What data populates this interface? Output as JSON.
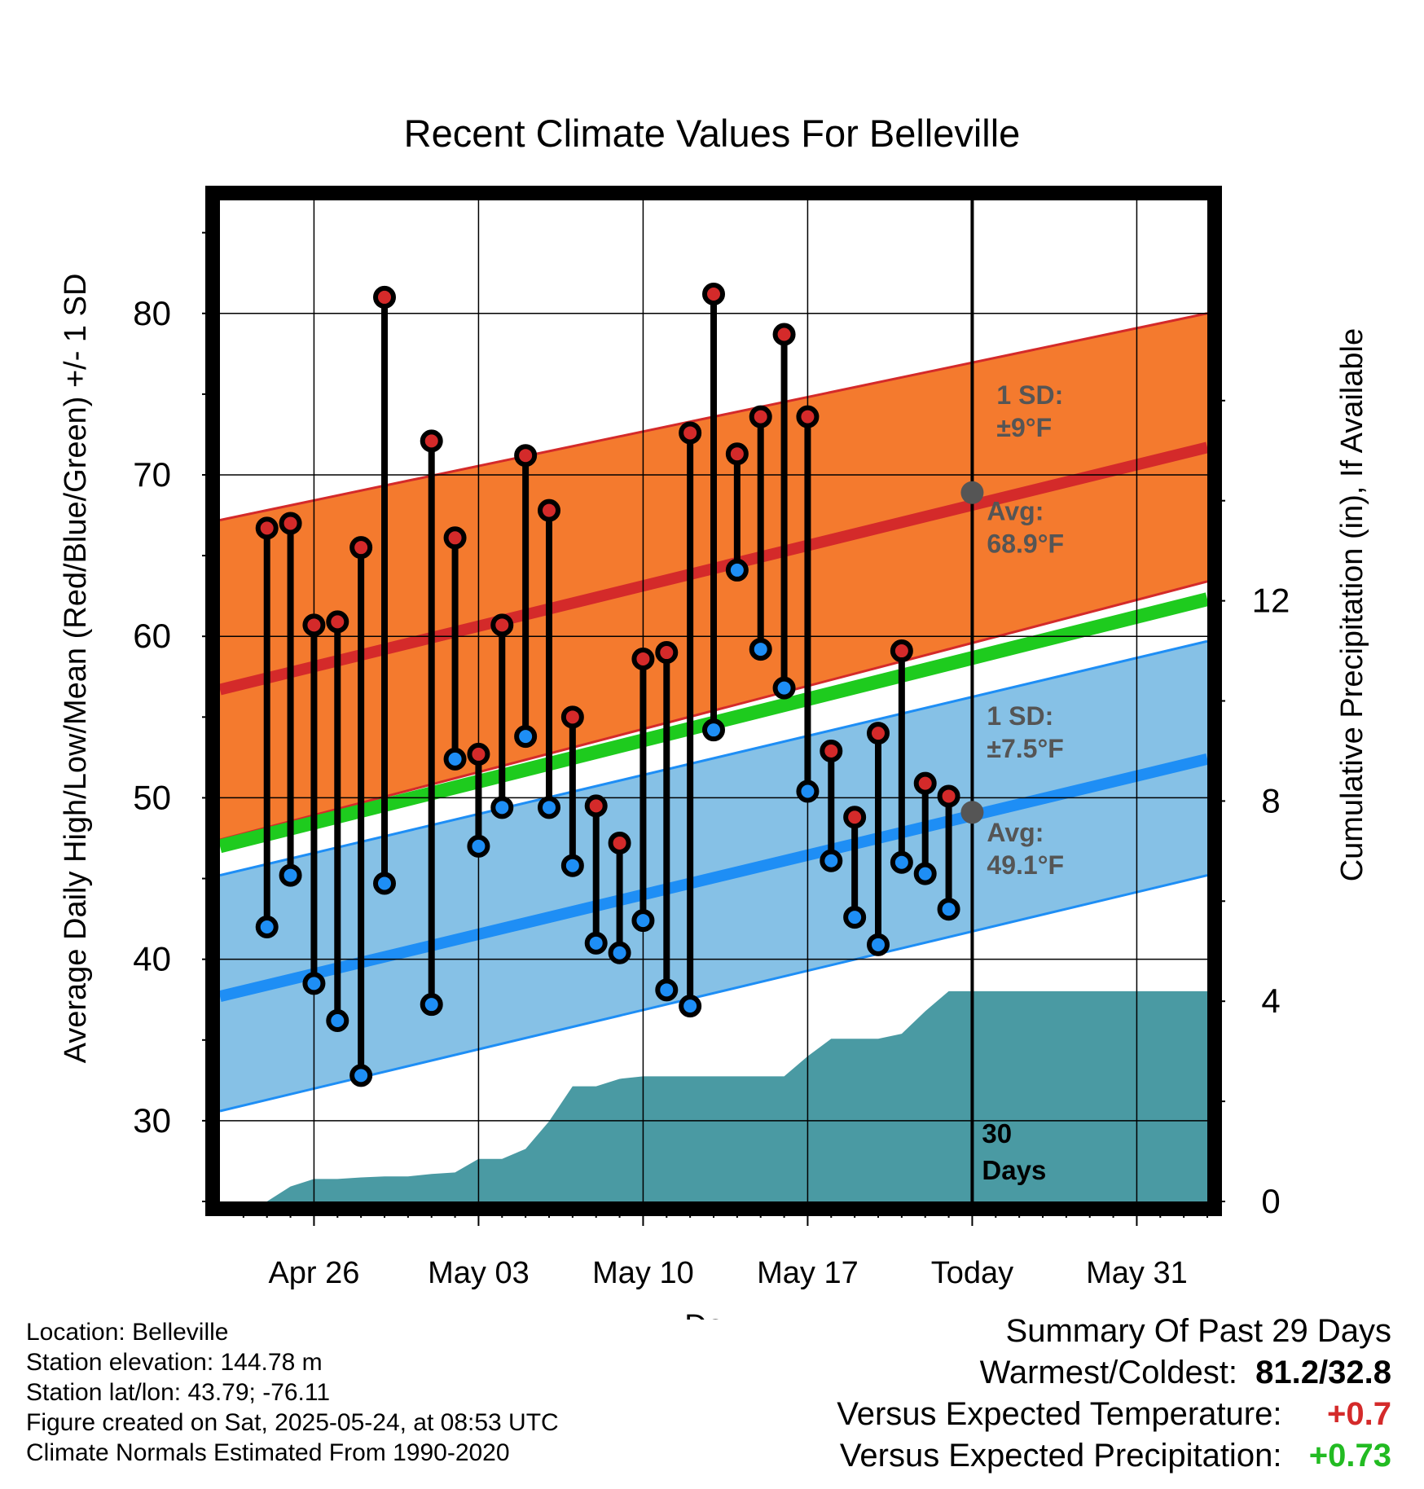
{
  "chart_data": {
    "type": "line",
    "title": "Recent Climate Values For Belleville",
    "xlabel": "Day",
    "ylabel_left": "Average Daily High/Low/Mean (Red/Blue/Green) +/- 1 SD",
    "ylabel_right": "Cumulative Precipitation (in), If Available",
    "x_tick_labels": [
      "Apr 26",
      "May 03",
      "May 10",
      "May 17",
      "Today",
      "May 31"
    ],
    "x_tick_days": [
      "2025-04-26",
      "2025-05-03",
      "2025-05-10",
      "2025-05-17",
      "2025-05-24",
      "2025-05-31"
    ],
    "x_range": [
      "2025-04-22",
      "2025-06-03"
    ],
    "ylim_left": [
      25,
      87
    ],
    "y_ticks_left": [
      30,
      40,
      50,
      60,
      70,
      80
    ],
    "ylim_right": [
      0,
      20
    ],
    "y_ticks_right": [
      0,
      4,
      8,
      12
    ],
    "grid": true,
    "today": "2025-05-24",
    "days_label": "30 Days",
    "observed": {
      "dates": [
        "2025-04-24",
        "2025-04-25",
        "2025-04-26",
        "2025-04-27",
        "2025-04-28",
        "2025-04-29",
        "2025-05-01",
        "2025-05-02",
        "2025-05-03",
        "2025-05-04",
        "2025-05-05",
        "2025-05-06",
        "2025-05-07",
        "2025-05-08",
        "2025-05-09",
        "2025-05-10",
        "2025-05-11",
        "2025-05-12",
        "2025-05-13",
        "2025-05-14",
        "2025-05-15",
        "2025-05-16",
        "2025-05-17",
        "2025-05-18",
        "2025-05-19",
        "2025-05-20",
        "2025-05-21",
        "2025-05-22",
        "2025-05-23"
      ],
      "high": [
        66.7,
        67.0,
        60.7,
        60.9,
        65.5,
        81.0,
        72.1,
        66.1,
        52.7,
        60.7,
        71.2,
        67.8,
        55.0,
        49.5,
        47.2,
        58.6,
        59.0,
        72.6,
        81.2,
        71.3,
        73.6,
        78.7,
        73.6,
        52.9,
        48.8,
        54.0,
        59.1,
        50.9,
        50.1
      ],
      "low": [
        42.0,
        45.2,
        38.5,
        36.2,
        32.8,
        44.7,
        37.2,
        52.4,
        47.0,
        49.4,
        53.8,
        49.4,
        45.8,
        41.0,
        40.4,
        42.4,
        38.1,
        37.1,
        54.2,
        64.1,
        59.2,
        56.8,
        50.4,
        46.1,
        42.6,
        40.9,
        46.0,
        45.3,
        43.1
      ]
    },
    "normals": {
      "dates": [
        "2025-04-22",
        "2025-06-03"
      ],
      "high_avg": [
        56.7,
        71.7
      ],
      "high_sd_upper": [
        67.2,
        80.0
      ],
      "high_sd_lower": [
        47.4,
        63.4
      ],
      "mean_avg": [
        47.0,
        62.3
      ],
      "low_avg": [
        37.7,
        52.4
      ],
      "low_sd_upper": [
        45.2,
        59.7
      ],
      "low_sd_lower": [
        30.6,
        45.2
      ]
    },
    "today_markers": {
      "high_avg": 68.9,
      "low_avg": 49.1
    },
    "annotations": {
      "high_sd": "1 SD: ±9°F",
      "high_avg": "Avg: 68.9°F",
      "low_sd": "1 SD: ±7.5°F",
      "low_avg": "Avg: 49.1°F"
    },
    "precip": {
      "dates": [
        "2025-04-22",
        "2025-04-24",
        "2025-04-25",
        "2025-04-26",
        "2025-04-27",
        "2025-04-28",
        "2025-04-29",
        "2025-04-30",
        "2025-05-01",
        "2025-05-02",
        "2025-05-03",
        "2025-05-04",
        "2025-05-05",
        "2025-05-06",
        "2025-05-07",
        "2025-05-08",
        "2025-05-09",
        "2025-05-10",
        "2025-05-11",
        "2025-05-12",
        "2025-05-13",
        "2025-05-14",
        "2025-05-15",
        "2025-05-16",
        "2025-05-17",
        "2025-05-18",
        "2025-05-19",
        "2025-05-20",
        "2025-05-21",
        "2025-05-22",
        "2025-05-23",
        "2025-05-24",
        "2025-06-03"
      ],
      "values": [
        0,
        0,
        0.3,
        0.45,
        0.45,
        0.48,
        0.5,
        0.5,
        0.55,
        0.58,
        0.85,
        0.85,
        1.05,
        1.6,
        2.3,
        2.3,
        2.45,
        2.5,
        2.5,
        2.5,
        2.5,
        2.5,
        2.5,
        2.5,
        2.9,
        3.25,
        3.25,
        3.25,
        3.35,
        3.8,
        4.2,
        4.2,
        4.2
      ]
    },
    "colors": {
      "high_band": "#f47a2e",
      "high_line": "#d42a2a",
      "mean_line": "#1ecb1e",
      "low_band": "#86c1e6",
      "low_line": "#1e8ef5",
      "precip": "#4a9aa3",
      "high_point": "#d42a2a",
      "low_point": "#1e8ef5",
      "annotation_text": "#555555",
      "temp_anomaly": "#d42a2a",
      "precip_anomaly": "#22bb22"
    }
  },
  "info": {
    "location": "Location: Belleville",
    "elevation": "Station elevation: 144.78 m",
    "latlon": "Station lat/lon: 43.79; -76.11",
    "created": "Figure created on Sat, 2025-05-24, at 08:53 UTC",
    "normals": "Climate Normals Estimated From 1990-2020"
  },
  "summary": {
    "title": "Summary Of Past 29 Days",
    "warmest_coldest_label": "Warmest/Coldest:",
    "warmest_coldest_value": "81.2/32.8",
    "temp_label": "Versus Expected Temperature:",
    "temp_value": "+0.7",
    "precip_label": "Versus Expected Precipitation:",
    "precip_value": "+0.73"
  }
}
